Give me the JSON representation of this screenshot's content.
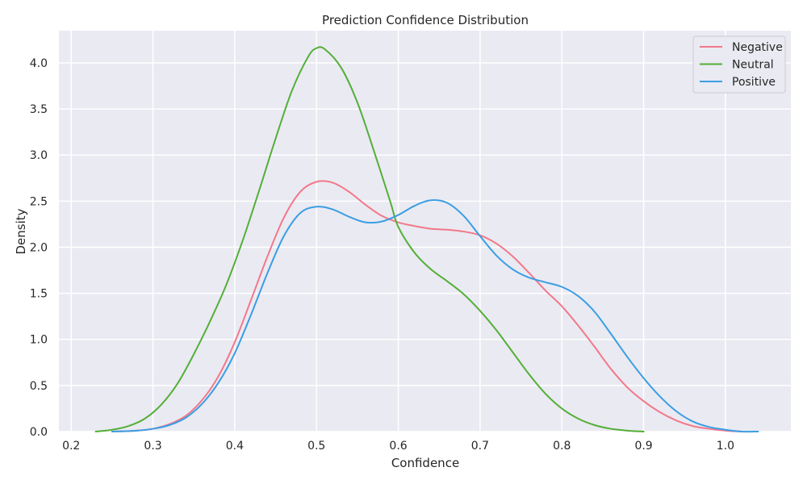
{
  "chart_data": {
    "type": "line",
    "title": "Prediction Confidence Distribution",
    "xlabel": "Confidence",
    "ylabel": "Density",
    "xlim": [
      0.185,
      1.08
    ],
    "ylim": [
      0,
      4.35
    ],
    "xticks": [
      0.2,
      0.3,
      0.4,
      0.5,
      0.6,
      0.7,
      0.8,
      0.9,
      1.0
    ],
    "xtick_labels": [
      "0.2",
      "0.3",
      "0.4",
      "0.5",
      "0.6",
      "0.7",
      "0.8",
      "0.9",
      "1.0"
    ],
    "yticks": [
      0,
      0.5,
      1.0,
      1.5,
      2.0,
      2.5,
      3.0,
      3.5,
      4.0
    ],
    "ytick_labels": [
      "0.0",
      "0.5",
      "1.0",
      "1.5",
      "2.0",
      "2.5",
      "3.0",
      "3.5",
      "4.0"
    ],
    "grid": true,
    "legend_position": "top-right",
    "series": [
      {
        "name": "Negative",
        "color": "#f2788a",
        "points": [
          [
            0.25,
            0.0
          ],
          [
            0.28,
            0.01
          ],
          [
            0.3,
            0.03
          ],
          [
            0.32,
            0.08
          ],
          [
            0.34,
            0.17
          ],
          [
            0.36,
            0.34
          ],
          [
            0.38,
            0.6
          ],
          [
            0.4,
            0.97
          ],
          [
            0.42,
            1.43
          ],
          [
            0.44,
            1.9
          ],
          [
            0.46,
            2.32
          ],
          [
            0.48,
            2.6
          ],
          [
            0.5,
            2.71
          ],
          [
            0.52,
            2.7
          ],
          [
            0.54,
            2.6
          ],
          [
            0.56,
            2.46
          ],
          [
            0.58,
            2.34
          ],
          [
            0.6,
            2.27
          ],
          [
            0.62,
            2.23
          ],
          [
            0.64,
            2.2
          ],
          [
            0.66,
            2.19
          ],
          [
            0.68,
            2.17
          ],
          [
            0.7,
            2.13
          ],
          [
            0.72,
            2.04
          ],
          [
            0.74,
            1.9
          ],
          [
            0.76,
            1.72
          ],
          [
            0.78,
            1.53
          ],
          [
            0.8,
            1.36
          ],
          [
            0.82,
            1.15
          ],
          [
            0.84,
            0.92
          ],
          [
            0.86,
            0.68
          ],
          [
            0.88,
            0.48
          ],
          [
            0.9,
            0.33
          ],
          [
            0.92,
            0.21
          ],
          [
            0.94,
            0.12
          ],
          [
            0.96,
            0.06
          ],
          [
            0.98,
            0.03
          ],
          [
            1.0,
            0.01
          ],
          [
            1.02,
            0.0
          ]
        ]
      },
      {
        "name": "Neutral",
        "color": "#53af37",
        "points": [
          [
            0.23,
            0.0
          ],
          [
            0.25,
            0.02
          ],
          [
            0.27,
            0.06
          ],
          [
            0.29,
            0.14
          ],
          [
            0.31,
            0.29
          ],
          [
            0.33,
            0.52
          ],
          [
            0.35,
            0.84
          ],
          [
            0.37,
            1.2
          ],
          [
            0.39,
            1.6
          ],
          [
            0.41,
            2.08
          ],
          [
            0.43,
            2.62
          ],
          [
            0.45,
            3.18
          ],
          [
            0.47,
            3.7
          ],
          [
            0.49,
            4.07
          ],
          [
            0.5,
            4.16
          ],
          [
            0.51,
            4.15
          ],
          [
            0.53,
            3.95
          ],
          [
            0.55,
            3.57
          ],
          [
            0.57,
            3.05
          ],
          [
            0.59,
            2.5
          ],
          [
            0.6,
            2.22
          ],
          [
            0.62,
            1.94
          ],
          [
            0.64,
            1.76
          ],
          [
            0.66,
            1.63
          ],
          [
            0.68,
            1.49
          ],
          [
            0.7,
            1.31
          ],
          [
            0.72,
            1.1
          ],
          [
            0.74,
            0.86
          ],
          [
            0.76,
            0.62
          ],
          [
            0.78,
            0.41
          ],
          [
            0.8,
            0.25
          ],
          [
            0.82,
            0.14
          ],
          [
            0.84,
            0.07
          ],
          [
            0.86,
            0.03
          ],
          [
            0.88,
            0.01
          ],
          [
            0.9,
            0.0
          ]
        ]
      },
      {
        "name": "Positive",
        "color": "#3a9ee4",
        "points": [
          [
            0.25,
            0.0
          ],
          [
            0.28,
            0.01
          ],
          [
            0.3,
            0.03
          ],
          [
            0.32,
            0.07
          ],
          [
            0.34,
            0.15
          ],
          [
            0.36,
            0.3
          ],
          [
            0.38,
            0.53
          ],
          [
            0.4,
            0.85
          ],
          [
            0.42,
            1.27
          ],
          [
            0.44,
            1.72
          ],
          [
            0.46,
            2.12
          ],
          [
            0.48,
            2.37
          ],
          [
            0.5,
            2.44
          ],
          [
            0.52,
            2.41
          ],
          [
            0.54,
            2.33
          ],
          [
            0.56,
            2.27
          ],
          [
            0.58,
            2.28
          ],
          [
            0.6,
            2.35
          ],
          [
            0.62,
            2.45
          ],
          [
            0.64,
            2.51
          ],
          [
            0.66,
            2.48
          ],
          [
            0.68,
            2.34
          ],
          [
            0.7,
            2.12
          ],
          [
            0.72,
            1.91
          ],
          [
            0.74,
            1.76
          ],
          [
            0.76,
            1.67
          ],
          [
            0.78,
            1.62
          ],
          [
            0.8,
            1.57
          ],
          [
            0.82,
            1.47
          ],
          [
            0.84,
            1.3
          ],
          [
            0.86,
            1.06
          ],
          [
            0.88,
            0.81
          ],
          [
            0.9,
            0.58
          ],
          [
            0.92,
            0.38
          ],
          [
            0.94,
            0.22
          ],
          [
            0.96,
            0.11
          ],
          [
            0.98,
            0.05
          ],
          [
            1.0,
            0.02
          ],
          [
            1.02,
            0.0
          ],
          [
            1.04,
            0.0
          ]
        ]
      }
    ]
  }
}
